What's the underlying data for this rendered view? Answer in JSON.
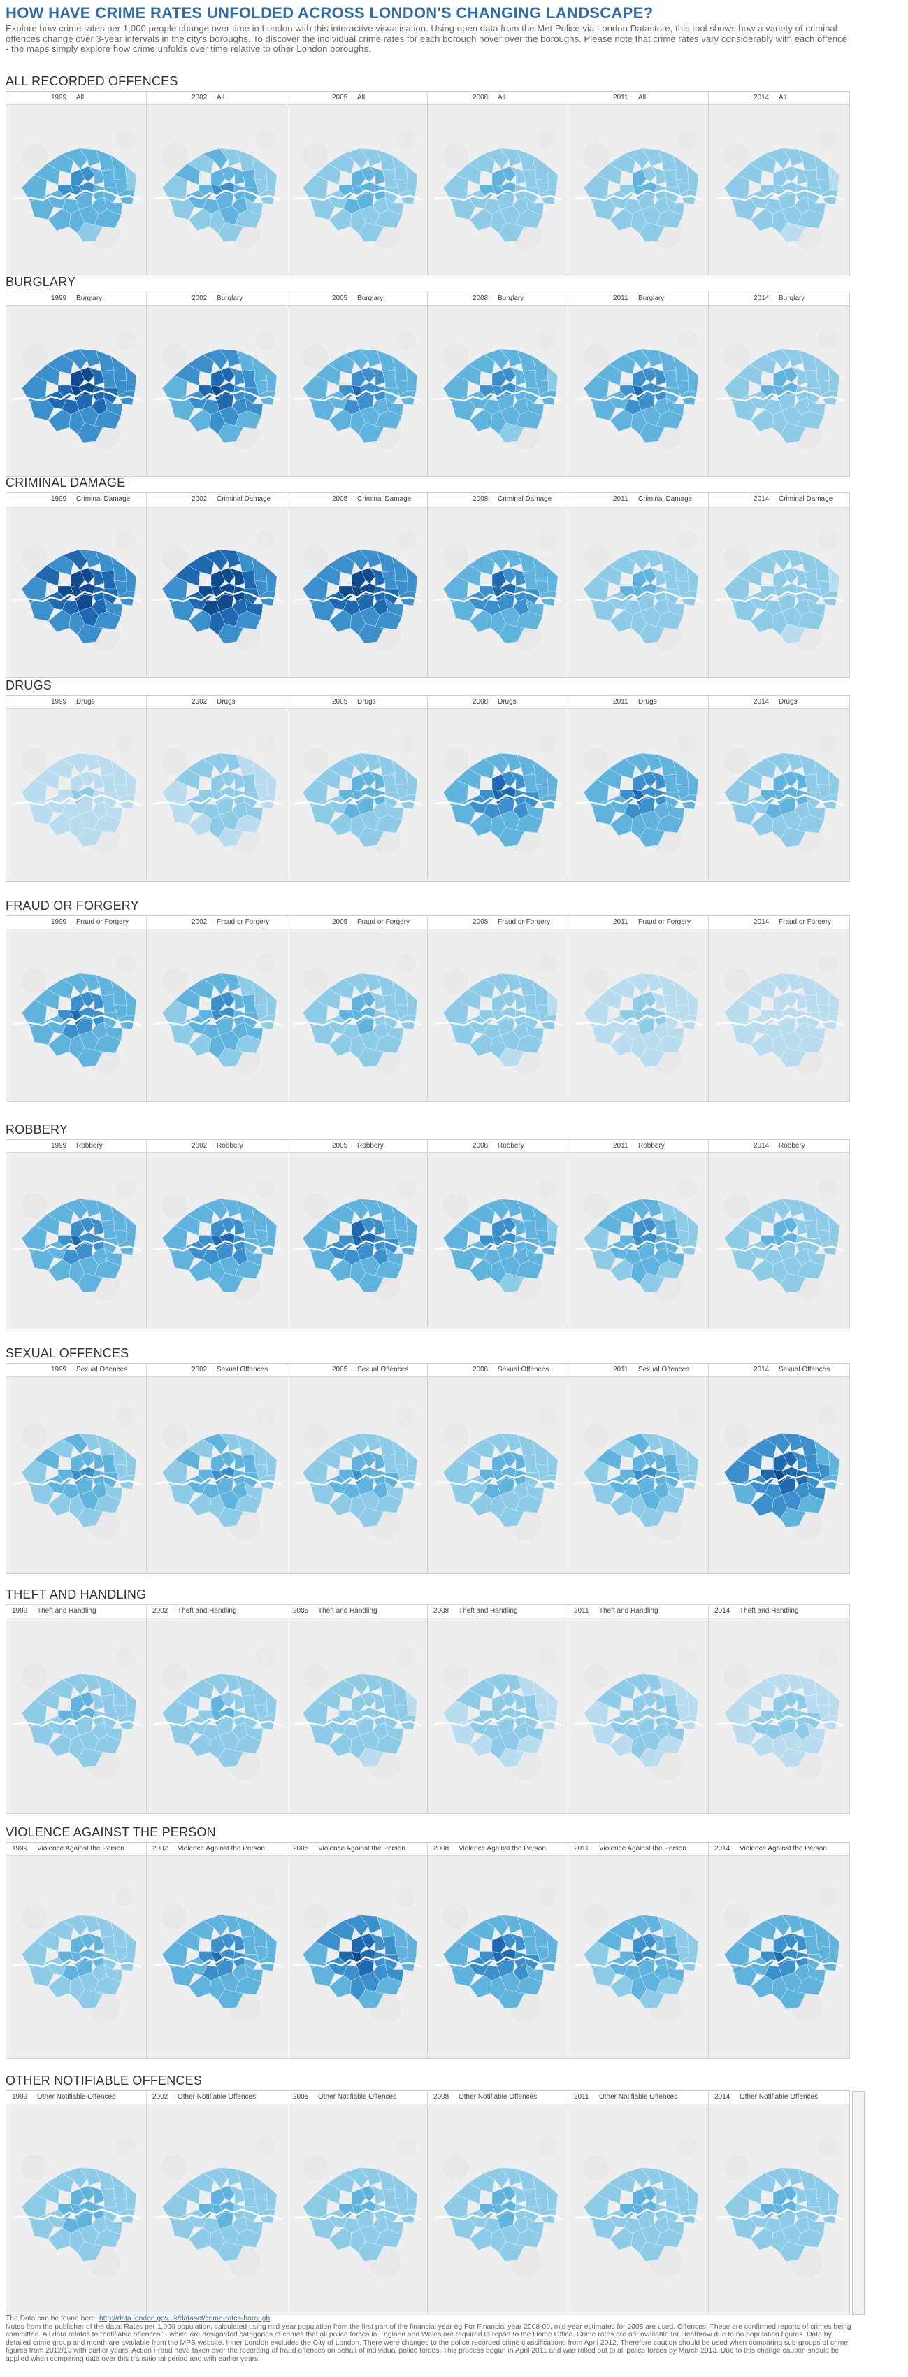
{
  "title": "HOW HAVE CRIME RATES UNFOLDED ACROSS LONDON'S CHANGING LANDSCAPE?",
  "intro": "Explore how crime rates per 1,000 people change over time in London with this interactive visualisation. Using open data from the Met Police via London Datastore, this tool shows how a variety of criminal offences change over 3-year intervals in the city's boroughs. To discover the individual crime rates for each borough hover over the boroughs. Please note that crime rates vary considerably with each offence - the maps simply explore how crime unfolds over time relative to other London boroughs.",
  "years": [
    "1999",
    "2002",
    "2005",
    "2008",
    "2011",
    "2014"
  ],
  "colors": {
    "title": "#2e6dae",
    "ramp": [
      "#e2f0f8",
      "#b9dcee",
      "#8ecbe6",
      "#5fb3dc",
      "#3b8fcb",
      "#1e69b0",
      "#0e4a8c"
    ],
    "river": "#ffffff",
    "background": "#eeeeee"
  },
  "sections": [
    {
      "title": "ALL RECORDED OFFENCES",
      "panel_label": "All",
      "intensity": [
        0.45,
        0.4,
        0.35,
        0.3,
        0.28,
        0.25
      ]
    },
    {
      "title": "BURGLARY",
      "panel_label": "Burglary",
      "intensity": [
        0.7,
        0.6,
        0.5,
        0.45,
        0.5,
        0.3
      ]
    },
    {
      "title": "CRIMINAL DAMAGE",
      "panel_label": "Criminal Damage",
      "intensity": [
        0.75,
        0.8,
        0.72,
        0.55,
        0.3,
        0.25
      ]
    },
    {
      "title": "DRUGS",
      "panel_label": "Drugs",
      "intensity": [
        0.15,
        0.22,
        0.35,
        0.55,
        0.5,
        0.35
      ]
    },
    {
      "title": "FRAUD OR FORGERY",
      "panel_label": "Fraud or Forgery",
      "intensity": [
        0.5,
        0.42,
        0.32,
        0.25,
        0.18,
        0.08
      ]
    },
    {
      "title": "ROBBERY",
      "panel_label": "Robbery",
      "intensity": [
        0.5,
        0.52,
        0.55,
        0.45,
        0.42,
        0.3
      ]
    },
    {
      "title": "SEXUAL OFFENCES",
      "panel_label": "Sexual Offences",
      "intensity": [
        0.4,
        0.4,
        0.38,
        0.35,
        0.4,
        0.62
      ]
    },
    {
      "title": "THEFT AND HANDLING",
      "panel_label": "Theft and Handling",
      "intensity": [
        0.3,
        0.28,
        0.25,
        0.22,
        0.22,
        0.2
      ]
    },
    {
      "title": "VIOLENCE AGAINST THE PERSON",
      "panel_label": "Violence Against the Person",
      "intensity": [
        0.35,
        0.5,
        0.6,
        0.55,
        0.42,
        0.5
      ]
    },
    {
      "title": "OTHER NOTIFIABLE OFFENCES",
      "panel_label": "Other Notifiable Offences",
      "intensity": [
        0.35,
        0.32,
        0.3,
        0.32,
        0.3,
        0.3
      ]
    }
  ],
  "footer": {
    "source_prefix": "The Data can be found here: ",
    "source_link": "http://data.london.gov.uk/dataset/crime-rates-borough",
    "notes": "Notes from the publisher of the data: Rates per 1,000 population, calculated using mid-year population from the first part of the financial year eg For Financial year 2008-09, mid-year estimates for 2008 are used. Offences: These are confirmed reports of crimes being committed. All data relates to \"notifiable offences\" - which are designated categories of crimes that all police forces in England and Wales are required to report to the Home Office. Crime rates are not available for Heathrow due to no population figures. Data by detailed crime group and month are available from the MPS website. Inner London excludes the City of London. There were changes to the police recorded crime classifications from April 2012. Therefore caution should be used when comparing sub-groups of crime figures from 2012/13 with earlier years. Action Fraud have taken over the recording of fraud offences on behalf of individual police forces. This process began in April 2011 and was rolled out to all police forces by March 2013. Due to this change caution should be applied when comparing data over this transitional period and with earlier years."
  }
}
